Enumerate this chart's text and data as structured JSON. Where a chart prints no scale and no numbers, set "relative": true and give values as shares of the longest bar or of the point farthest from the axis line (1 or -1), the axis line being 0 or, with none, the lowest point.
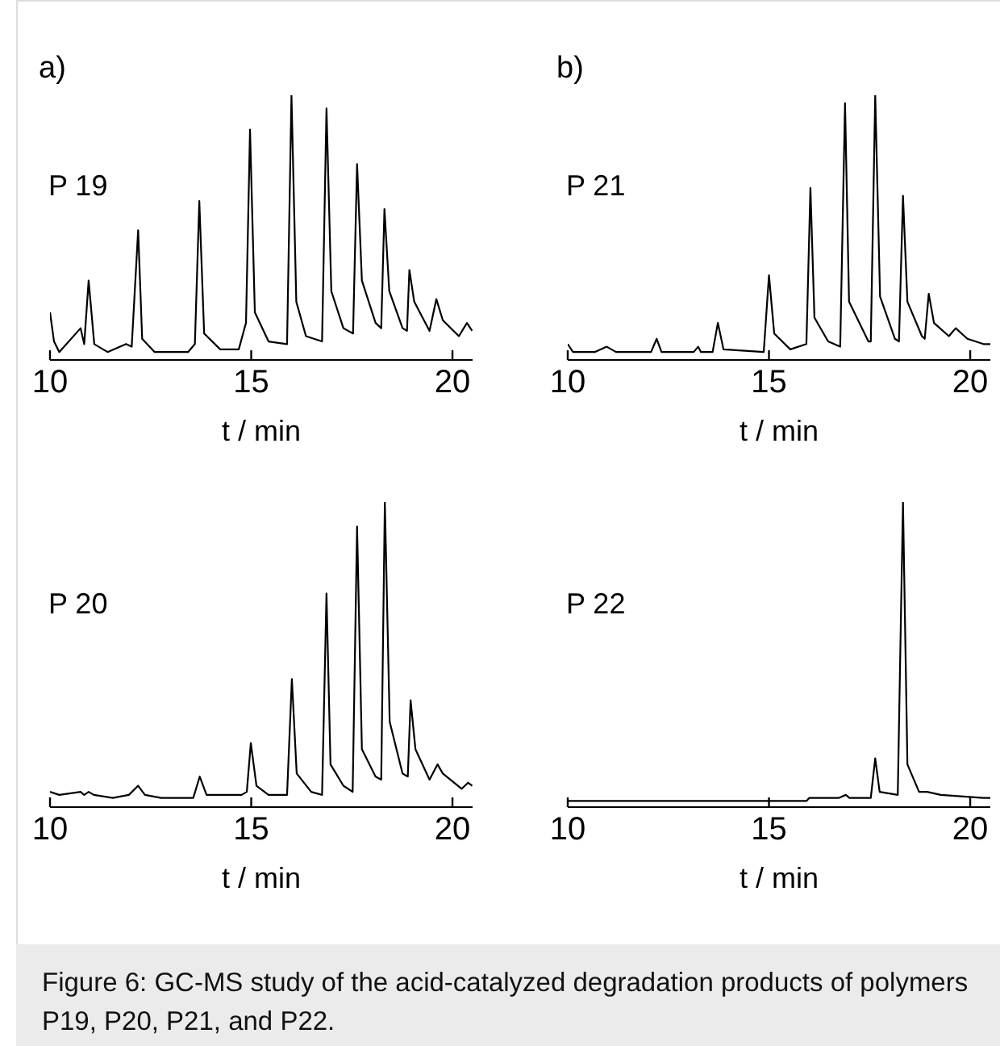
{
  "chart_data": [
    {
      "type": "line",
      "title": "a)",
      "xlabel": "t / min",
      "relative": true,
      "tick_labels": "x",
      "xlim": [
        10,
        20.5
      ],
      "xticks": [
        10,
        15,
        20
      ],
      "x": [
        10.0,
        10.1,
        10.23,
        10.76,
        10.85,
        10.96,
        11.1,
        11.43,
        11.89,
        12.03,
        12.19,
        12.29,
        12.6,
        13.43,
        13.6,
        13.71,
        13.83,
        14.23,
        14.69,
        14.87,
        14.97,
        15.09,
        15.43,
        15.89,
        16.0,
        16.12,
        16.36,
        16.76,
        16.87,
        16.99,
        17.29,
        17.53,
        17.63,
        17.75,
        18.09,
        18.23,
        18.31,
        18.43,
        18.76,
        18.87,
        18.93,
        19.05,
        19.43,
        19.6,
        19.76,
        20.16,
        20.36,
        20.49
      ],
      "series": [
        {
          "name": "P 19",
          "color": "#000000",
          "values": [
            0.18,
            0.07,
            0.03,
            0.12,
            0.06,
            0.3,
            0.06,
            0.03,
            0.06,
            0.05,
            0.49,
            0.08,
            0.03,
            0.03,
            0.06,
            0.6,
            0.1,
            0.04,
            0.04,
            0.14,
            0.87,
            0.18,
            0.07,
            0.06,
            1.0,
            0.22,
            0.09,
            0.07,
            0.95,
            0.26,
            0.12,
            0.1,
            0.74,
            0.3,
            0.14,
            0.12,
            0.57,
            0.26,
            0.12,
            0.11,
            0.34,
            0.22,
            0.11,
            0.23,
            0.15,
            0.09,
            0.14,
            0.11
          ]
        }
      ]
    },
    {
      "type": "line",
      "title": "b)",
      "xlabel": "t / min",
      "relative": true,
      "tick_labels": "x",
      "xlim": [
        10,
        20.5
      ],
      "xticks": [
        10,
        15,
        20
      ],
      "x": [
        10.0,
        10.13,
        10.67,
        10.97,
        11.2,
        12.07,
        12.21,
        12.33,
        13.13,
        13.24,
        13.31,
        13.6,
        13.73,
        13.87,
        14.87,
        15.0,
        15.13,
        15.53,
        15.93,
        16.03,
        16.13,
        16.47,
        16.77,
        16.89,
        16.99,
        17.47,
        17.53,
        17.64,
        17.76,
        18.13,
        18.23,
        18.33,
        18.44,
        18.8,
        18.87,
        18.97,
        19.1,
        19.47,
        19.64,
        19.93,
        20.33,
        20.5
      ],
      "series": [
        {
          "name": "P 21",
          "color": "#000000",
          "values": [
            0.06,
            0.03,
            0.03,
            0.05,
            0.03,
            0.03,
            0.08,
            0.03,
            0.03,
            0.05,
            0.03,
            0.03,
            0.14,
            0.04,
            0.03,
            0.32,
            0.1,
            0.04,
            0.06,
            0.65,
            0.16,
            0.07,
            0.05,
            0.97,
            0.22,
            0.07,
            0.07,
            1.0,
            0.24,
            0.08,
            0.07,
            0.62,
            0.22,
            0.09,
            0.08,
            0.25,
            0.14,
            0.09,
            0.12,
            0.08,
            0.06,
            0.06
          ]
        }
      ]
    },
    {
      "type": "line",
      "xlabel": "t / min",
      "relative": true,
      "tick_labels": "x",
      "xlim": [
        10,
        20.5
      ],
      "xticks": [
        10,
        15,
        20
      ],
      "x": [
        10.0,
        10.23,
        10.76,
        10.85,
        10.96,
        11.09,
        11.56,
        11.96,
        12.19,
        12.36,
        12.76,
        13.56,
        13.72,
        13.89,
        14.76,
        14.89,
        14.99,
        15.13,
        15.43,
        15.89,
        16.01,
        16.13,
        16.49,
        16.76,
        16.87,
        16.97,
        17.29,
        17.52,
        17.63,
        17.75,
        18.09,
        18.23,
        18.32,
        18.44,
        18.76,
        18.89,
        18.96,
        19.08,
        19.43,
        19.63,
        19.76,
        20.23,
        20.39,
        20.49
      ],
      "series": [
        {
          "name": "P 20",
          "color": "#000000",
          "values": [
            0.05,
            0.04,
            0.05,
            0.04,
            0.05,
            0.04,
            0.03,
            0.04,
            0.07,
            0.04,
            0.03,
            0.03,
            0.1,
            0.04,
            0.04,
            0.05,
            0.21,
            0.07,
            0.04,
            0.04,
            0.42,
            0.11,
            0.05,
            0.04,
            0.7,
            0.14,
            0.07,
            0.05,
            0.92,
            0.19,
            0.1,
            0.09,
            1.0,
            0.28,
            0.11,
            0.1,
            0.35,
            0.19,
            0.09,
            0.14,
            0.11,
            0.06,
            0.08,
            0.07
          ]
        }
      ]
    },
    {
      "type": "line",
      "xlabel": "t / min",
      "relative": true,
      "tick_labels": "x",
      "xlim": [
        10,
        20.5
      ],
      "xticks": [
        10,
        15,
        20
      ],
      "x": [
        10.0,
        15.93,
        16.0,
        16.73,
        16.91,
        17.0,
        17.53,
        17.64,
        17.75,
        18.2,
        18.33,
        18.44,
        18.73,
        18.93,
        19.27,
        20.33,
        20.5
      ],
      "series": [
        {
          "name": "P 22",
          "color": "#000000",
          "values": [
            0.02,
            0.02,
            0.03,
            0.03,
            0.04,
            0.03,
            0.03,
            0.16,
            0.05,
            0.04,
            1.0,
            0.14,
            0.05,
            0.05,
            0.04,
            0.03,
            0.03
          ]
        }
      ],
      "annotations": [
        "Figure 6: GC-MS study of the acid-catalyzed degradation products of polymers P19, P20, P21, and P22."
      ]
    }
  ]
}
